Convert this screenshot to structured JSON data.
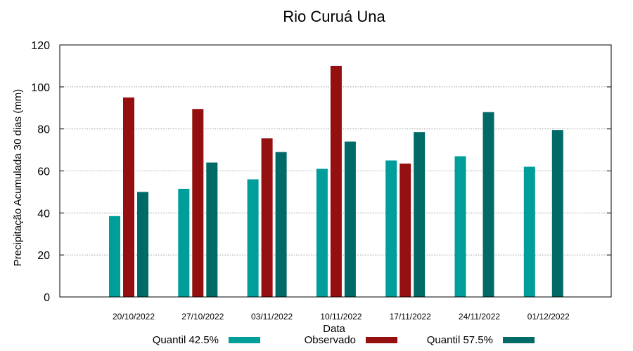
{
  "chart_data": {
    "type": "bar",
    "title": "Rio Curuá Una",
    "xlabel": "Data",
    "ylabel": "Precipitação Acumulada 30 dias (mm)",
    "ylim": [
      0,
      120
    ],
    "yticks": [
      0,
      20,
      40,
      60,
      80,
      100,
      120
    ],
    "grid": true,
    "legend_position": "bottom",
    "categories": [
      "20/10/2022",
      "27/10/2022",
      "03/11/2022",
      "10/11/2022",
      "17/11/2022",
      "24/11/2022",
      "01/12/2022"
    ],
    "series": [
      {
        "name": "Quantil 42.5%",
        "color": "#009e9a",
        "values": [
          38.5,
          51.5,
          56,
          61,
          65,
          67,
          62
        ]
      },
      {
        "name": "Observado",
        "color": "#930f10",
        "values": [
          95,
          89.5,
          75.5,
          110,
          63.5,
          null,
          null
        ]
      },
      {
        "name": "Quantil 57.5%",
        "color": "#006b66",
        "values": [
          50,
          64,
          69,
          74,
          78.5,
          88,
          79.5
        ]
      }
    ]
  }
}
